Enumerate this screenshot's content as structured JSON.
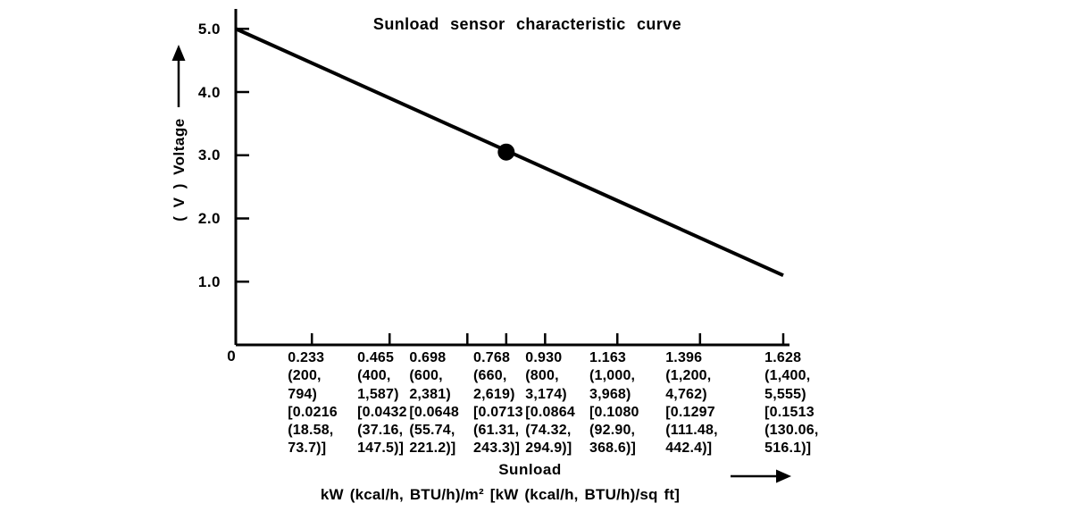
{
  "figure": {
    "background": "#ffffff",
    "ink": "#000000"
  },
  "chart_data": {
    "type": "line",
    "title": "Sunload sensor characteristic curve",
    "xlabel": "Sunload",
    "x_units": "kW (kcal/h, BTU/h)/m²  [kW (kcal/h, BTU/h)/sq ft]",
    "ylabel": "( V )  Voltage",
    "xlim": [
      0,
      1.628
    ],
    "ylim": [
      0,
      5.3
    ],
    "grid": false,
    "legend": "none",
    "origin_label": "0",
    "yticks": [
      {
        "value": 5.0,
        "label": "5.0"
      },
      {
        "value": 4.0,
        "label": "4.0"
      },
      {
        "value": 3.0,
        "label": "3.0"
      },
      {
        "value": 2.0,
        "label": "2.0"
      },
      {
        "value": 1.0,
        "label": "1.0"
      }
    ],
    "xticks": [
      {
        "value": 0.233,
        "frac": 0.139,
        "label_frac": 0.095,
        "lines": [
          "0.233",
          "(200,",
          "794)",
          "[0.0216",
          "(18.58,",
          "73.7)]"
        ]
      },
      {
        "value": 0.465,
        "frac": 0.281,
        "label_frac": 0.222,
        "lines": [
          "0.465",
          "(400,",
          "1,587)",
          "[0.0432",
          "(37.16,",
          "147.5)]"
        ]
      },
      {
        "value": 0.698,
        "frac": 0.423,
        "label_frac": 0.317,
        "lines": [
          "0.698",
          "(600,",
          "2,381)",
          "[0.0648",
          "(55.74,",
          "221.2)]"
        ]
      },
      {
        "value": 0.768,
        "frac": 0.494,
        "label_frac": 0.434,
        "lines": [
          "0.768",
          "(660,",
          "2,619)",
          "[0.0713",
          "(61.31,",
          "243.3)]"
        ]
      },
      {
        "value": 0.93,
        "frac": 0.565,
        "label_frac": 0.529,
        "lines": [
          "0.930",
          "(800,",
          "3,174)",
          "[0.0864",
          "(74.32,",
          "294.9)]"
        ]
      },
      {
        "value": 1.163,
        "frac": 0.697,
        "label_frac": 0.646,
        "lines": [
          "1.163",
          "(1,000,",
          "3,968)",
          "[0.1080",
          "(92.90,",
          "368.6)]"
        ]
      },
      {
        "value": 1.396,
        "frac": 0.848,
        "label_frac": 0.785,
        "lines": [
          "1.396",
          "(1,200,",
          "4,762)",
          "[0.1297",
          "(111.48,",
          "442.4)]"
        ]
      },
      {
        "value": 1.628,
        "frac": 1.0,
        "label_frac": 0.966,
        "lines": [
          "1.628",
          "(1,400,",
          "5,555)",
          "[0.1513",
          "(130.06,",
          "516.1)]"
        ]
      }
    ],
    "series": [
      {
        "name": "sensor output line",
        "points": [
          [
            0,
            5.0
          ],
          [
            1.628,
            1.1
          ]
        ]
      }
    ],
    "marker_point": {
      "x": 0.768,
      "voltage": 3.05,
      "frac": 0.494
    },
    "line_color": "#000000"
  }
}
